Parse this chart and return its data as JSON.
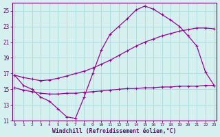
{
  "line1_x": [
    0,
    1,
    2,
    3,
    4,
    5,
    6,
    7,
    8,
    9,
    10,
    11,
    12,
    13,
    14,
    15,
    16,
    17,
    18,
    19,
    20,
    21,
    22,
    23
  ],
  "line1_y": [
    16.8,
    15.5,
    15.0,
    14.0,
    13.5,
    12.5,
    11.5,
    11.3,
    14.0,
    17.0,
    20.0,
    22.0,
    23.0,
    24.0,
    25.1,
    25.6,
    25.2,
    24.5,
    23.8,
    23.0,
    21.8,
    20.5,
    17.2,
    15.5
  ],
  "line2_x": [
    0,
    1,
    2,
    3,
    4,
    5,
    6,
    7,
    8,
    9,
    10,
    11,
    12,
    13,
    14,
    15,
    16,
    17,
    18,
    19,
    20,
    21,
    22,
    23
  ],
  "line2_y": [
    16.8,
    16.5,
    16.3,
    16.1,
    16.2,
    16.4,
    16.7,
    17.0,
    17.3,
    17.7,
    18.2,
    18.7,
    19.3,
    19.9,
    20.5,
    21.0,
    21.4,
    21.8,
    22.1,
    22.4,
    22.6,
    22.8,
    22.8,
    22.7
  ],
  "line3_x": [
    0,
    1,
    2,
    3,
    4,
    5,
    6,
    7,
    8,
    9,
    10,
    11,
    12,
    13,
    14,
    15,
    16,
    17,
    18,
    19,
    20,
    21,
    22,
    23
  ],
  "line3_y": [
    15.2,
    14.9,
    14.7,
    14.5,
    14.4,
    14.4,
    14.5,
    14.5,
    14.6,
    14.7,
    14.8,
    14.9,
    15.0,
    15.1,
    15.1,
    15.2,
    15.2,
    15.3,
    15.3,
    15.4,
    15.4,
    15.4,
    15.5,
    15.5
  ],
  "line_color": "#990099",
  "bg_color": "#d6f0f0",
  "grid_color": "#aadddd",
  "axis_color": "#660066",
  "xlabel": "Windchill (Refroidissement éolien,°C)",
  "ylim": [
    11,
    26
  ],
  "xlim": [
    0,
    23
  ],
  "yticks": [
    11,
    13,
    15,
    17,
    19,
    21,
    23,
    25
  ],
  "xticks": [
    0,
    1,
    2,
    3,
    4,
    5,
    6,
    7,
    8,
    9,
    10,
    11,
    12,
    13,
    14,
    15,
    16,
    17,
    18,
    19,
    20,
    21,
    22,
    23
  ]
}
